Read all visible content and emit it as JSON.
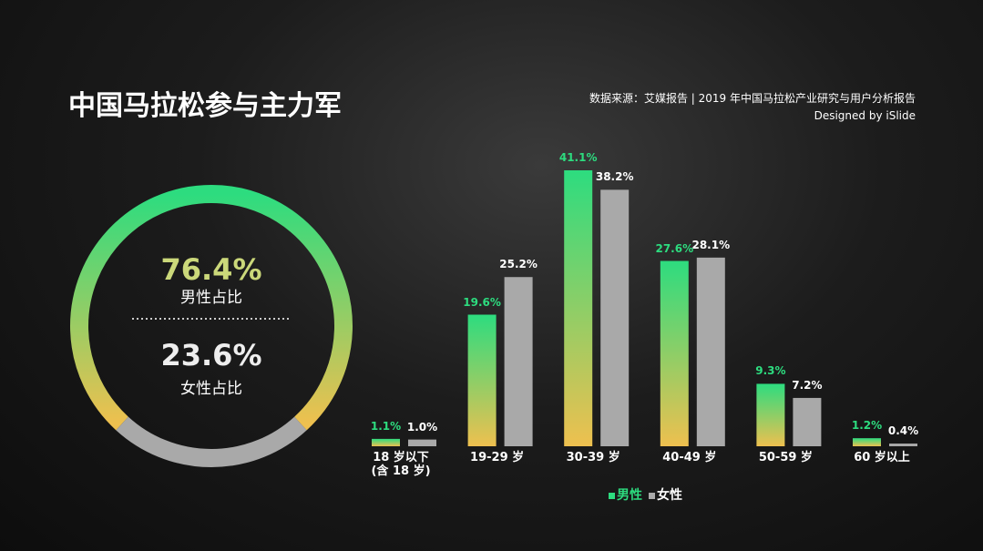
{
  "title": "中国马拉松参与主力军",
  "source": "数据来源：艾媒报告 | 2019 年中国马拉松产业研究与用户分析报告",
  "credit": "Designed by iSlide",
  "chart_data": [
    {
      "type": "donut",
      "categories": [
        "男性占比",
        "女性占比"
      ],
      "values": [
        76.4,
        23.6
      ],
      "value_labels": [
        "76.4%",
        "23.6%"
      ],
      "colors": [
        "#2ddc7f",
        "#eec04f",
        "#a9a9a9"
      ]
    },
    {
      "type": "bar",
      "categories": [
        "18 岁以下\n(含 18 岁)",
        "19-29 岁",
        "30-39 岁",
        "40-49 岁",
        "50-59 岁",
        "60 岁以上"
      ],
      "series": [
        {
          "name": "男性",
          "colors": [
            "#2ddc7f",
            "#eec04f"
          ],
          "values": [
            1.1,
            19.6,
            41.1,
            27.6,
            9.3,
            1.2
          ],
          "value_labels": [
            "1.1%",
            "19.6%",
            "41.1%",
            "27.6%",
            "9.3%",
            "1.2%"
          ]
        },
        {
          "name": "女性",
          "color": "#a9a9a9",
          "values": [
            1.0,
            25.2,
            38.2,
            28.1,
            7.2,
            0.4
          ],
          "value_labels": [
            "1.0%",
            "25.2%",
            "38.2%",
            "28.1%",
            "7.2%",
            "0.4%"
          ]
        }
      ]
    }
  ]
}
